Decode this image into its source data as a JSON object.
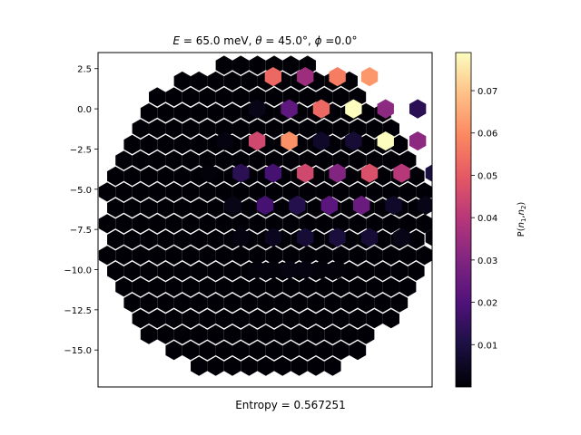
{
  "chart_data": {
    "type": "heatmap",
    "subtype": "hexbin",
    "title_parts": [
      {
        "text": "E",
        "italic": true
      },
      {
        "text": " = 65.0 meV, ",
        "italic": false
      },
      {
        "text": "θ",
        "italic": true
      },
      {
        "text": " = 45.0°, ",
        "italic": false
      },
      {
        "text": "ϕ",
        "italic": true
      },
      {
        "text": " =0.0°",
        "italic": false
      }
    ],
    "footer": "Entropy = 0.567251",
    "y_ticks": [
      2.5,
      0.0,
      -2.5,
      -5.0,
      -7.5,
      -10.0,
      -12.5,
      -15.0
    ],
    "y_tick_labels": [
      "2.5",
      "0.0",
      "−2.5",
      "−5.0",
      "−7.5",
      "−10.0",
      "−12.5",
      "−15.0"
    ],
    "ylim": [
      -17.3,
      3.5
    ],
    "x_ticks_shown": false,
    "colorbar": {
      "label_parts": [
        {
          "text": "P(",
          "italic": false
        },
        {
          "text": "n",
          "italic": true
        },
        {
          "text": "1",
          "italic": false,
          "sub": true
        },
        {
          "text": ",",
          "italic": false
        },
        {
          "text": "n",
          "italic": true
        },
        {
          "text": "2",
          "italic": false,
          "sub": true
        },
        {
          "text": ")",
          "italic": false
        }
      ],
      "ticks": [
        0.01,
        0.02,
        0.03,
        0.04,
        0.05,
        0.06,
        0.07
      ],
      "tick_labels": [
        "0.01",
        "0.02",
        "0.03",
        "0.04",
        "0.05",
        "0.06",
        "0.07"
      ],
      "range": [
        0.0,
        0.079
      ],
      "colormap": "magma"
    },
    "hexbin_rows": [
      {
        "y": 3.0,
        "x_start": 1,
        "values": [
          0,
          0,
          0
        ]
      },
      {
        "y": 2.0,
        "x_start": -1.5,
        "values": [
          0,
          0,
          0.053,
          0,
          0.035,
          0,
          0.057,
          0,
          0.062,
          0,
          0
        ]
      },
      {
        "y": 0.0,
        "x_start": -2.5,
        "values": [
          0,
          0,
          0.003,
          0,
          0.023,
          0,
          0.053,
          0,
          0.079,
          0,
          0.032,
          0,
          0.013,
          0,
          0.002
        ]
      },
      {
        "y": -1.0,
        "x_start": -3,
        "values": [
          0,
          0,
          0,
          0,
          0
        ]
      },
      {
        "y": -2.0,
        "x_start": -3.5,
        "values": [
          0,
          0.002,
          0,
          0.045,
          0,
          0.061,
          0,
          0.006,
          0,
          0.008,
          0,
          0.079,
          0,
          0.032,
          0,
          0.002,
          0,
          0
        ]
      },
      {
        "y": -4.0,
        "x_start": -4.5,
        "values": [
          0,
          0.001,
          0,
          0.013,
          0,
          0.018,
          0,
          0.045,
          0,
          0.03,
          0,
          0.047,
          0,
          0.04,
          0,
          0.01,
          0,
          0.001,
          0
        ]
      },
      {
        "y": -6.0,
        "x_start": -5,
        "values": [
          0,
          0,
          0,
          0.003,
          0,
          0.018,
          0,
          0.012,
          0,
          0.022,
          0,
          0.025,
          0,
          0.006,
          0,
          0.003,
          0,
          0
        ]
      },
      {
        "y": -8.0,
        "x_start": -5.5,
        "values": [
          0,
          0,
          0,
          0,
          0.002,
          0,
          0.004,
          0,
          0.008,
          0,
          0.009,
          0,
          0.008,
          0,
          0.003,
          0,
          0.001,
          0,
          0
        ]
      },
      {
        "y": -10.0,
        "x_start": -5.5,
        "values": [
          0,
          0,
          0,
          0,
          0,
          0.001,
          0.001,
          0.002,
          0.002,
          0.001,
          0.001,
          0,
          0,
          0,
          0,
          0,
          0,
          0
        ]
      },
      {
        "y": -12.0,
        "x_start": -5.5,
        "values": [
          0,
          0,
          0,
          0,
          0,
          0,
          0,
          0,
          0,
          0,
          0,
          0,
          0,
          0,
          0,
          0,
          0,
          0
        ]
      },
      {
        "y": -14.0,
        "x_start": -4.5,
        "values": [
          0,
          0,
          0,
          0,
          0,
          0,
          0,
          0,
          0,
          0,
          0,
          0,
          0,
          0,
          0,
          0
        ]
      },
      {
        "y": -16.0,
        "x_start": -2.5,
        "values": [
          0,
          0,
          0,
          0,
          0,
          0,
          0,
          0,
          0,
          0,
          0,
          0
        ]
      }
    ]
  }
}
